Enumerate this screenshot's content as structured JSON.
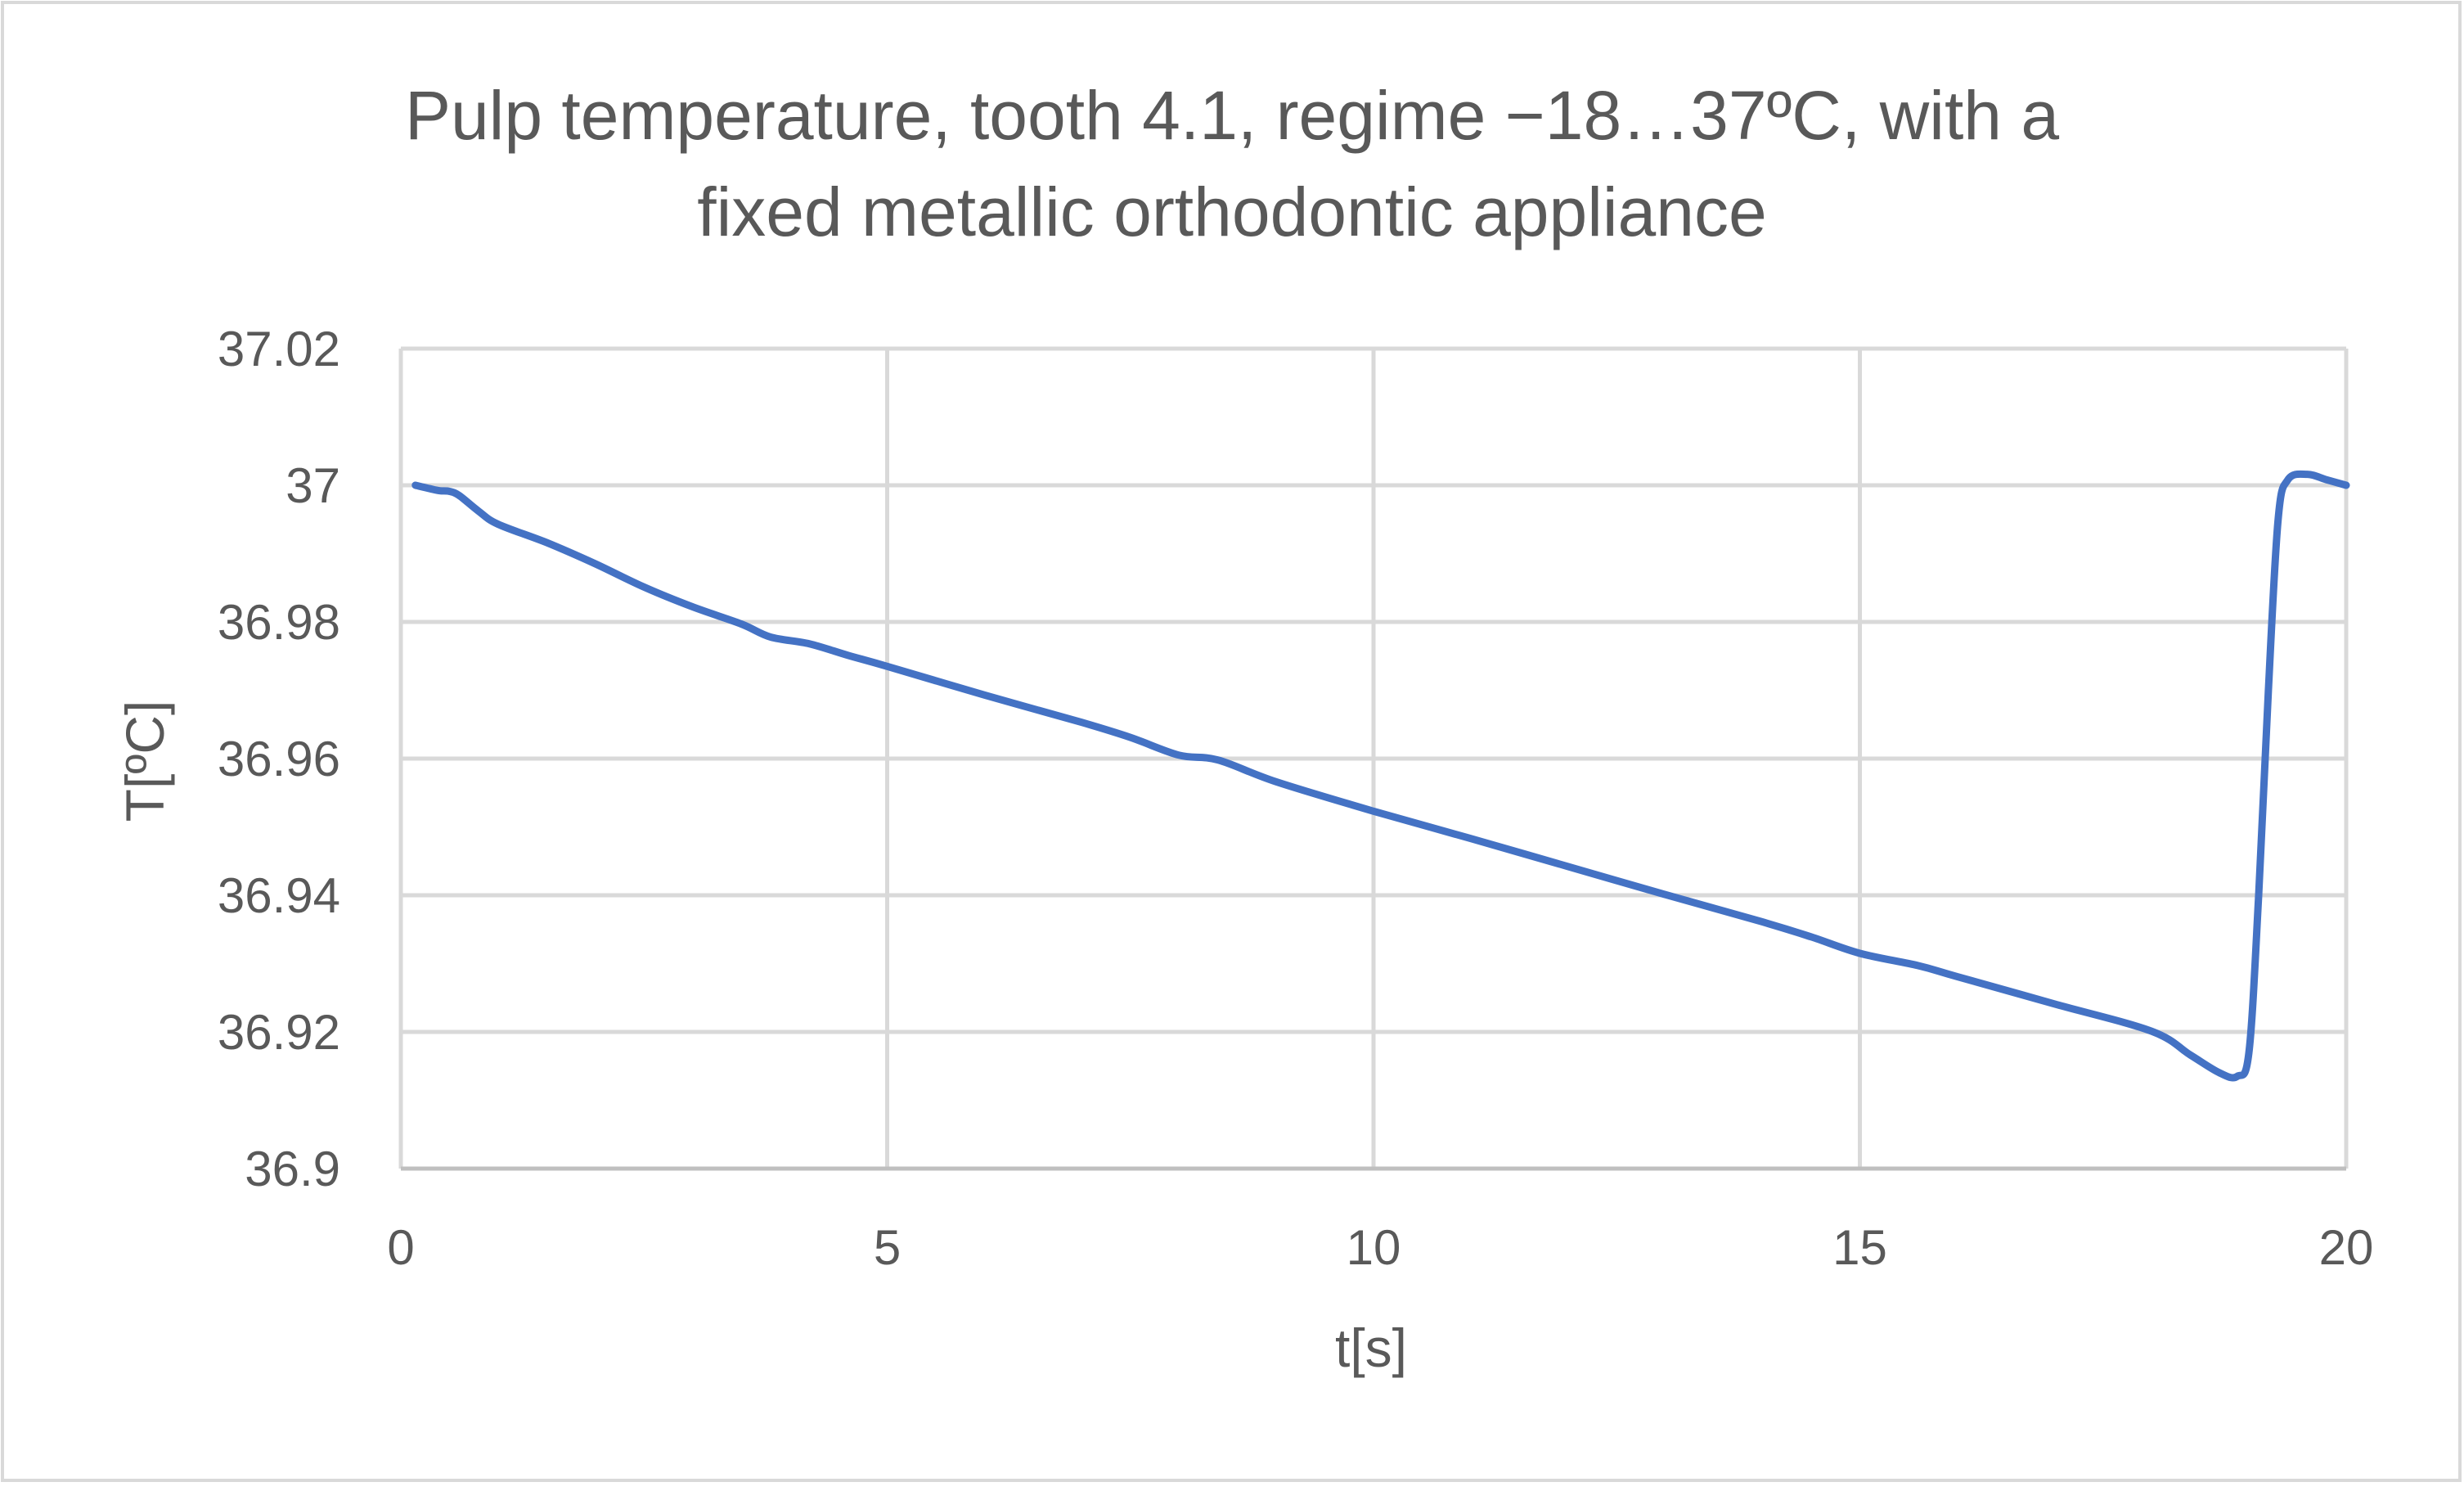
{
  "chart_data": {
    "type": "line",
    "title_lines": [
      "Pulp temperature, tooth 4.1, regime −18…37ºC, with a",
      "fixed metallic orthodontic appliance"
    ],
    "xlabel": "t[s]",
    "ylabel": "T[ºC]",
    "xlim": [
      0,
      20
    ],
    "ylim": [
      36.9,
      37.02
    ],
    "x_ticks": [
      0,
      5,
      10,
      15,
      20
    ],
    "x_tick_labels": [
      "0",
      "5",
      "10",
      "15",
      "20"
    ],
    "y_ticks": [
      36.9,
      36.92,
      36.94,
      36.96,
      36.98,
      37,
      37.02
    ],
    "y_tick_labels": [
      "36.9",
      "36.92",
      "36.94",
      "36.96",
      "36.98",
      "37",
      "37.02"
    ],
    "grid": true,
    "legend": "none",
    "series": [
      {
        "color": "#4472c4",
        "points": [
          [
            0.15,
            37.0
          ],
          [
            0.3,
            36.9995
          ],
          [
            0.4,
            36.9992
          ],
          [
            0.5,
            36.9991
          ],
          [
            0.6,
            36.9985
          ],
          [
            0.8,
            36.9962
          ],
          [
            1.0,
            36.9943
          ],
          [
            1.5,
            36.9916
          ],
          [
            2.0,
            36.9885
          ],
          [
            2.5,
            36.9851
          ],
          [
            3.0,
            36.9822
          ],
          [
            3.5,
            36.9797
          ],
          [
            3.8,
            36.9778
          ],
          [
            4.2,
            36.9768
          ],
          [
            4.6,
            36.9751
          ],
          [
            5.0,
            36.9735
          ],
          [
            6.0,
            36.9693
          ],
          [
            7.0,
            36.9653
          ],
          [
            7.5,
            36.9631
          ],
          [
            8.0,
            36.9605
          ],
          [
            8.4,
            36.9598
          ],
          [
            9.0,
            36.9566
          ],
          [
            10.0,
            36.9523
          ],
          [
            11.0,
            36.9483
          ],
          [
            12.0,
            36.9442
          ],
          [
            13.0,
            36.9401
          ],
          [
            14.0,
            36.9361
          ],
          [
            14.5,
            36.9339
          ],
          [
            15.0,
            36.9315
          ],
          [
            15.6,
            36.9297
          ],
          [
            16.0,
            36.9281
          ],
          [
            17.0,
            36.9241
          ],
          [
            18.0,
            36.9201
          ],
          [
            18.4,
            36.9166
          ],
          [
            18.7,
            36.914
          ],
          [
            18.88,
            36.9135
          ],
          [
            19.0,
            36.917
          ],
          [
            19.1,
            36.94
          ],
          [
            19.2,
            36.97
          ],
          [
            19.3,
            36.995
          ],
          [
            19.4,
            37.0008
          ],
          [
            19.6,
            37.0016
          ],
          [
            19.8,
            37.0008
          ],
          [
            20.0,
            37.0
          ]
        ]
      }
    ]
  }
}
